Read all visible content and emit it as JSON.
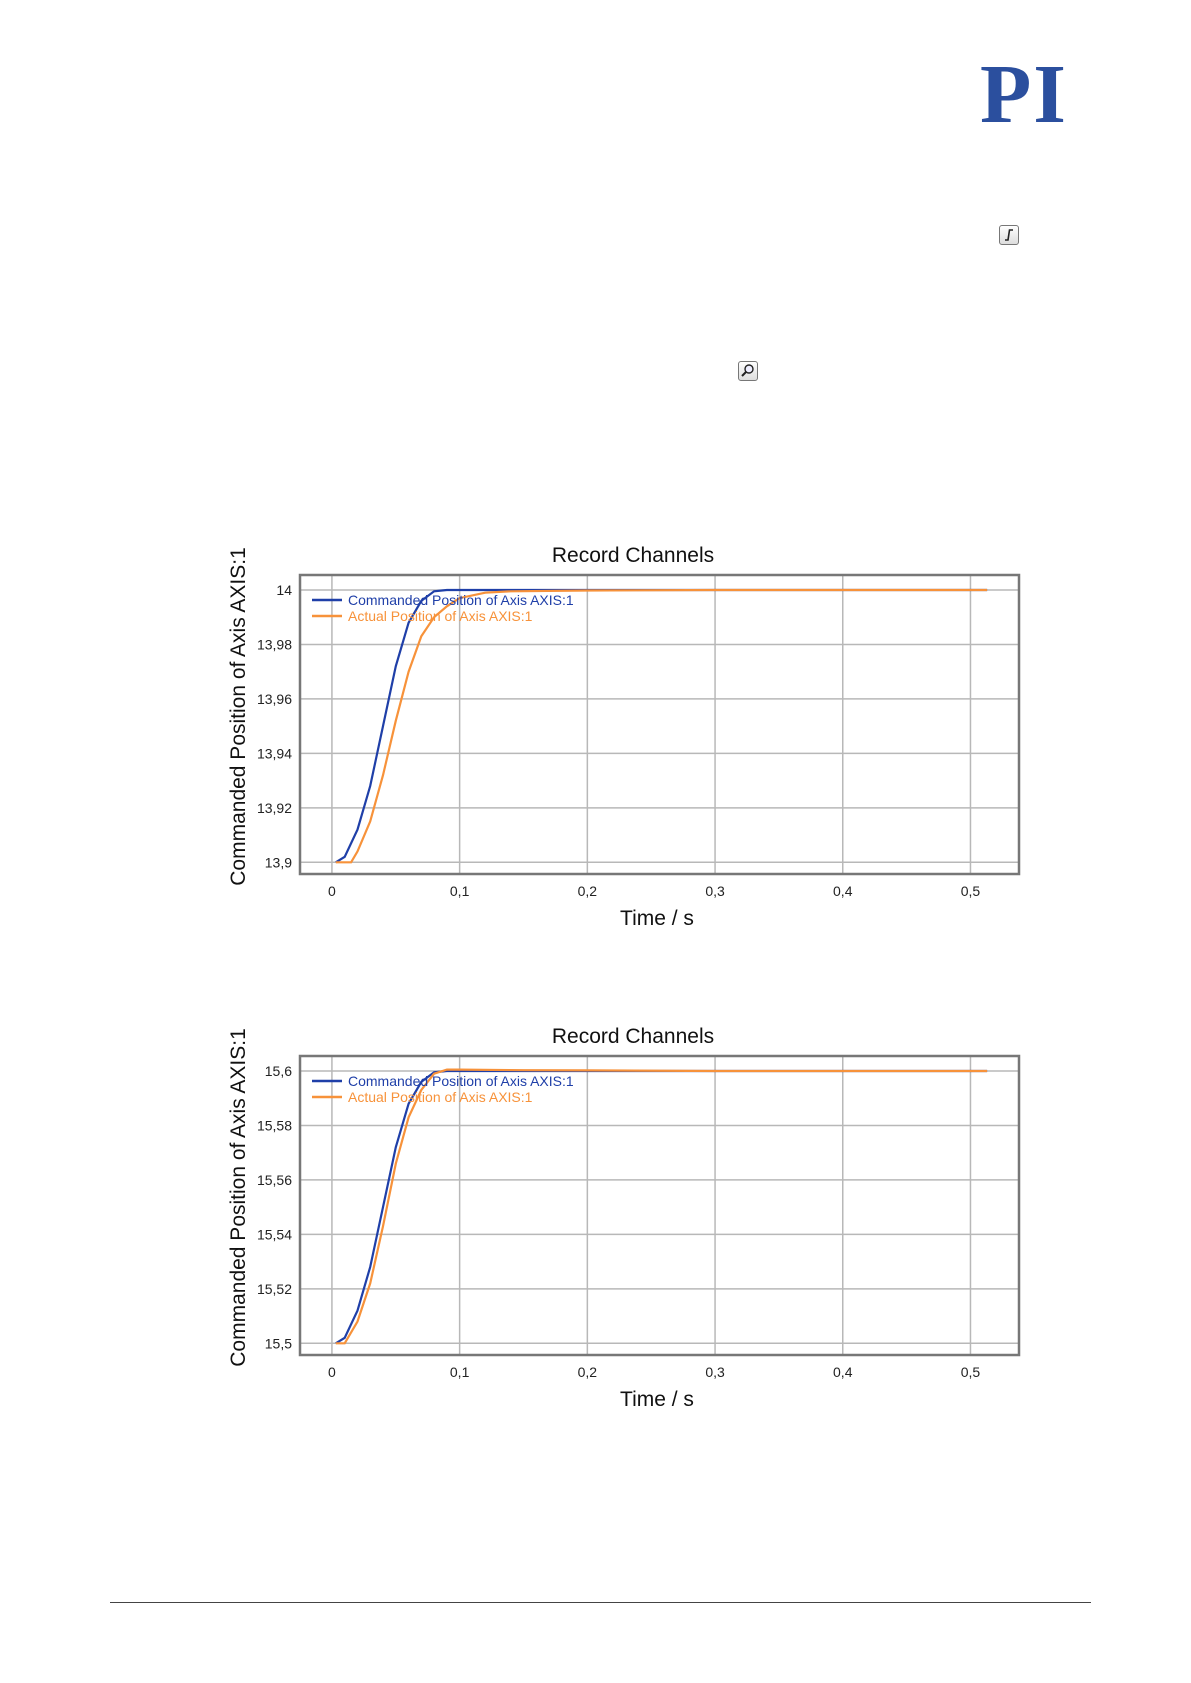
{
  "logo": {
    "text": "PI",
    "color": "#2b4f9e"
  },
  "icons": {
    "step_response": "step-response-icon",
    "zoom": "magnifier-icon"
  },
  "colors": {
    "commanded": "#1f3fa8",
    "actual": "#f7923a",
    "grid": "#b8b8b8",
    "frame": "#777777"
  },
  "chart_data": [
    {
      "type": "line",
      "title": "Record Channels",
      "xlabel": "Time / s",
      "ylabel": "Commanded Position of Axis  AXIS:1",
      "xlim": [
        -0.025,
        0.538
      ],
      "ylim": [
        13.8957,
        14.0055
      ],
      "xticks": [
        0,
        0.1,
        0.2,
        0.3,
        0.4,
        0.5
      ],
      "xtick_labels": [
        "0",
        "0,1",
        "0,2",
        "0,3",
        "0,4",
        "0,5"
      ],
      "yticks": [
        13.9,
        13.92,
        13.94,
        13.96,
        13.98,
        14
      ],
      "ytick_labels": [
        "13,9",
        "13,92",
        "13,94",
        "13,96",
        "13,98",
        "14"
      ],
      "grid": true,
      "legend_position": "top-left",
      "series": [
        {
          "name": "Commanded Position of Axis AXIS:1",
          "x": [
            0.003,
            0.01,
            0.02,
            0.03,
            0.04,
            0.05,
            0.06,
            0.07,
            0.08,
            0.09,
            0.1,
            0.2,
            0.3,
            0.4,
            0.513
          ],
          "y": [
            13.9,
            13.902,
            13.912,
            13.928,
            13.95,
            13.972,
            13.988,
            13.996,
            13.9995,
            14,
            14,
            14,
            14,
            14,
            14
          ]
        },
        {
          "name": "Actual Position of Axis AXIS:1",
          "x": [
            0.003,
            0.015,
            0.02,
            0.03,
            0.04,
            0.05,
            0.06,
            0.07,
            0.08,
            0.09,
            0.1,
            0.12,
            0.14,
            0.2,
            0.3,
            0.4,
            0.513
          ],
          "y": [
            13.9,
            13.9,
            13.904,
            13.915,
            13.932,
            13.952,
            13.97,
            13.983,
            13.99,
            13.994,
            13.997,
            13.999,
            13.9995,
            13.9998,
            14,
            14,
            14
          ]
        }
      ]
    },
    {
      "type": "line",
      "title": "Record Channels",
      "xlabel": "Time / s",
      "ylabel": "Commanded Position of Axis  AXIS:1",
      "xlim": [
        -0.025,
        0.538
      ],
      "ylim": [
        15.4957,
        15.6055
      ],
      "xticks": [
        0,
        0.1,
        0.2,
        0.3,
        0.4,
        0.5
      ],
      "xtick_labels": [
        "0",
        "0,1",
        "0,2",
        "0,3",
        "0,4",
        "0,5"
      ],
      "yticks": [
        15.5,
        15.52,
        15.54,
        15.56,
        15.58,
        15.6
      ],
      "ytick_labels": [
        "15,5",
        "15,52",
        "15,54",
        "15,56",
        "15,58",
        "15,6"
      ],
      "grid": true,
      "legend_position": "top-left",
      "series": [
        {
          "name": "Commanded Position of Axis AXIS:1",
          "x": [
            0.003,
            0.01,
            0.02,
            0.03,
            0.04,
            0.05,
            0.06,
            0.07,
            0.08,
            0.09,
            0.1,
            0.2,
            0.3,
            0.4,
            0.513
          ],
          "y": [
            15.5,
            15.502,
            15.512,
            15.528,
            15.55,
            15.572,
            15.588,
            15.596,
            15.5995,
            15.6,
            15.6,
            15.6,
            15.6,
            15.6,
            15.6
          ]
        },
        {
          "name": "Actual Position of Axis AXIS:1",
          "x": [
            0.003,
            0.01,
            0.02,
            0.03,
            0.04,
            0.05,
            0.06,
            0.07,
            0.08,
            0.09,
            0.1,
            0.15,
            0.2,
            0.3,
            0.4,
            0.513
          ],
          "y": [
            15.5,
            15.5,
            15.508,
            15.522,
            15.543,
            15.566,
            15.583,
            15.593,
            15.599,
            15.6005,
            15.6005,
            15.6003,
            15.6002,
            15.6,
            15.6,
            15.6
          ]
        }
      ]
    }
  ]
}
